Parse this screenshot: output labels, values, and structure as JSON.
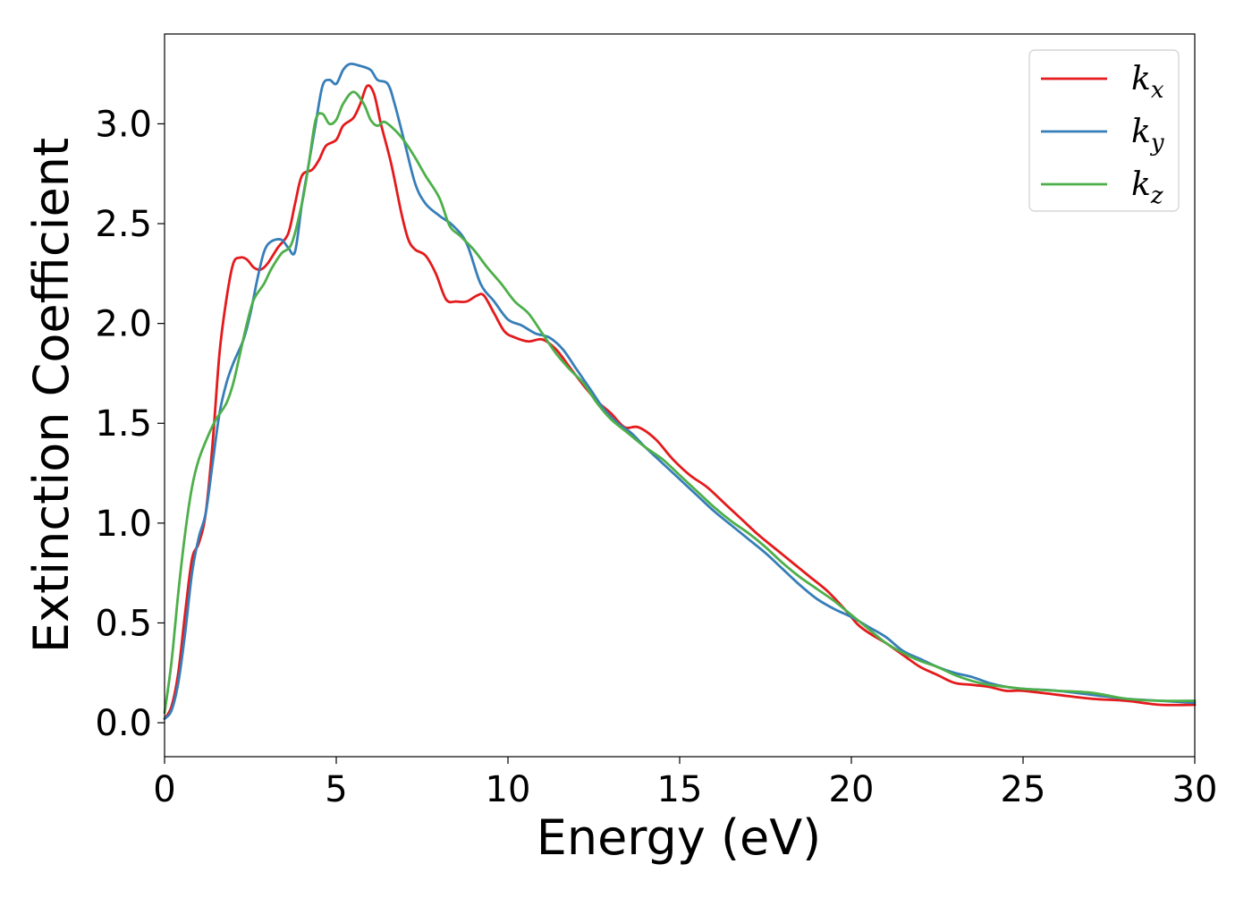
{
  "chart_data": {
    "type": "line",
    "title": "",
    "xlabel": "Energy (eV)",
    "ylabel": "Extinction Coefficient",
    "xlim": [
      0,
      30
    ],
    "ylim": [
      -0.17,
      3.45
    ],
    "grid": false,
    "legend_position": "top-right",
    "x_ticks": [
      0,
      5,
      10,
      15,
      20,
      25,
      30
    ],
    "x_tick_labels": [
      "0",
      "5",
      "10",
      "15",
      "20",
      "25",
      "30"
    ],
    "y_ticks": [
      0.0,
      0.5,
      1.0,
      1.5,
      2.0,
      2.5,
      3.0
    ],
    "y_tick_labels": [
      "0.0",
      "0.5",
      "1.0",
      "1.5",
      "2.0",
      "2.5",
      "3.0"
    ],
    "series": [
      {
        "name": "k_x",
        "legend_base": "k",
        "legend_sub": "x",
        "color": "#e41a1c",
        "points": [
          [
            0,
            0.02
          ],
          [
            0.2,
            0.08
          ],
          [
            0.4,
            0.25
          ],
          [
            0.6,
            0.55
          ],
          [
            0.8,
            0.82
          ],
          [
            1.0,
            0.9
          ],
          [
            1.2,
            1.05
          ],
          [
            1.4,
            1.4
          ],
          [
            1.6,
            1.85
          ],
          [
            1.8,
            2.12
          ],
          [
            2.0,
            2.3
          ],
          [
            2.2,
            2.33
          ],
          [
            2.4,
            2.32
          ],
          [
            2.6,
            2.28
          ],
          [
            2.8,
            2.27
          ],
          [
            3.0,
            2.3
          ],
          [
            3.3,
            2.38
          ],
          [
            3.6,
            2.45
          ],
          [
            3.8,
            2.6
          ],
          [
            4.0,
            2.74
          ],
          [
            4.3,
            2.77
          ],
          [
            4.5,
            2.82
          ],
          [
            4.7,
            2.89
          ],
          [
            5.0,
            2.92
          ],
          [
            5.2,
            2.99
          ],
          [
            5.5,
            3.03
          ],
          [
            5.7,
            3.1
          ],
          [
            5.9,
            3.19
          ],
          [
            6.1,
            3.15
          ],
          [
            6.3,
            3.0
          ],
          [
            6.6,
            2.8
          ],
          [
            6.9,
            2.55
          ],
          [
            7.1,
            2.42
          ],
          [
            7.3,
            2.37
          ],
          [
            7.6,
            2.34
          ],
          [
            7.9,
            2.25
          ],
          [
            8.2,
            2.12
          ],
          [
            8.5,
            2.11
          ],
          [
            8.8,
            2.11
          ],
          [
            9.1,
            2.14
          ],
          [
            9.3,
            2.14
          ],
          [
            9.6,
            2.05
          ],
          [
            9.9,
            1.96
          ],
          [
            10.2,
            1.93
          ],
          [
            10.6,
            1.91
          ],
          [
            11.0,
            1.92
          ],
          [
            11.4,
            1.87
          ],
          [
            11.8,
            1.78
          ],
          [
            12.2,
            1.69
          ],
          [
            12.6,
            1.61
          ],
          [
            13.0,
            1.55
          ],
          [
            13.4,
            1.48
          ],
          [
            13.8,
            1.48
          ],
          [
            14.3,
            1.42
          ],
          [
            14.8,
            1.32
          ],
          [
            15.3,
            1.24
          ],
          [
            15.8,
            1.18
          ],
          [
            16.3,
            1.1
          ],
          [
            16.8,
            1.02
          ],
          [
            17.3,
            0.94
          ],
          [
            17.8,
            0.87
          ],
          [
            18.3,
            0.8
          ],
          [
            18.8,
            0.73
          ],
          [
            19.3,
            0.66
          ],
          [
            19.8,
            0.57
          ],
          [
            20.2,
            0.49
          ],
          [
            20.6,
            0.44
          ],
          [
            21.0,
            0.4
          ],
          [
            21.5,
            0.34
          ],
          [
            22.0,
            0.28
          ],
          [
            22.5,
            0.24
          ],
          [
            23.0,
            0.2
          ],
          [
            23.5,
            0.19
          ],
          [
            24.0,
            0.18
          ],
          [
            24.5,
            0.16
          ],
          [
            25.0,
            0.16
          ],
          [
            26.0,
            0.14
          ],
          [
            27.0,
            0.12
          ],
          [
            28.0,
            0.11
          ],
          [
            29.0,
            0.09
          ],
          [
            30.0,
            0.09
          ]
        ]
      },
      {
        "name": "k_y",
        "legend_base": "k",
        "legend_sub": "y",
        "color": "#377eb8",
        "points": [
          [
            0,
            0.02
          ],
          [
            0.2,
            0.06
          ],
          [
            0.4,
            0.2
          ],
          [
            0.6,
            0.45
          ],
          [
            0.8,
            0.75
          ],
          [
            1.0,
            0.93
          ],
          [
            1.2,
            1.05
          ],
          [
            1.4,
            1.3
          ],
          [
            1.6,
            1.55
          ],
          [
            1.8,
            1.7
          ],
          [
            2.0,
            1.8
          ],
          [
            2.3,
            1.92
          ],
          [
            2.5,
            2.05
          ],
          [
            2.7,
            2.22
          ],
          [
            2.9,
            2.36
          ],
          [
            3.1,
            2.41
          ],
          [
            3.4,
            2.42
          ],
          [
            3.6,
            2.38
          ],
          [
            3.8,
            2.36
          ],
          [
            4.0,
            2.6
          ],
          [
            4.2,
            2.8
          ],
          [
            4.4,
            3.0
          ],
          [
            4.6,
            3.19
          ],
          [
            4.8,
            3.22
          ],
          [
            5.0,
            3.2
          ],
          [
            5.2,
            3.27
          ],
          [
            5.4,
            3.3
          ],
          [
            5.7,
            3.29
          ],
          [
            6.0,
            3.27
          ],
          [
            6.2,
            3.22
          ],
          [
            6.5,
            3.2
          ],
          [
            6.7,
            3.1
          ],
          [
            7.0,
            2.9
          ],
          [
            7.3,
            2.7
          ],
          [
            7.6,
            2.6
          ],
          [
            8.0,
            2.54
          ],
          [
            8.4,
            2.49
          ],
          [
            8.8,
            2.4
          ],
          [
            9.2,
            2.2
          ],
          [
            9.6,
            2.11
          ],
          [
            10.0,
            2.02
          ],
          [
            10.4,
            1.99
          ],
          [
            10.8,
            1.95
          ],
          [
            11.2,
            1.93
          ],
          [
            11.6,
            1.87
          ],
          [
            12.0,
            1.77
          ],
          [
            12.4,
            1.67
          ],
          [
            12.8,
            1.57
          ],
          [
            13.2,
            1.5
          ],
          [
            13.6,
            1.45
          ],
          [
            14.0,
            1.38
          ],
          [
            14.5,
            1.3
          ],
          [
            15.0,
            1.22
          ],
          [
            15.5,
            1.14
          ],
          [
            16.0,
            1.06
          ],
          [
            16.5,
            0.99
          ],
          [
            17.0,
            0.92
          ],
          [
            17.5,
            0.85
          ],
          [
            18.0,
            0.77
          ],
          [
            18.5,
            0.69
          ],
          [
            19.0,
            0.62
          ],
          [
            19.5,
            0.57
          ],
          [
            20.0,
            0.53
          ],
          [
            20.5,
            0.48
          ],
          [
            21.0,
            0.43
          ],
          [
            21.5,
            0.36
          ],
          [
            22.0,
            0.32
          ],
          [
            22.5,
            0.28
          ],
          [
            23.0,
            0.25
          ],
          [
            23.5,
            0.23
          ],
          [
            24.0,
            0.2
          ],
          [
            24.5,
            0.18
          ],
          [
            25.0,
            0.17
          ],
          [
            26.0,
            0.16
          ],
          [
            27.0,
            0.14
          ],
          [
            28.0,
            0.12
          ],
          [
            29.0,
            0.11
          ],
          [
            30.0,
            0.1
          ]
        ]
      },
      {
        "name": "k_z",
        "legend_base": "k",
        "legend_sub": "z",
        "color": "#4daf4a",
        "points": [
          [
            0,
            0.05
          ],
          [
            0.2,
            0.3
          ],
          [
            0.4,
            0.65
          ],
          [
            0.6,
            0.95
          ],
          [
            0.8,
            1.18
          ],
          [
            1.0,
            1.32
          ],
          [
            1.3,
            1.45
          ],
          [
            1.5,
            1.52
          ],
          [
            1.8,
            1.6
          ],
          [
            2.0,
            1.7
          ],
          [
            2.2,
            1.85
          ],
          [
            2.4,
            2.0
          ],
          [
            2.6,
            2.12
          ],
          [
            2.9,
            2.2
          ],
          [
            3.1,
            2.27
          ],
          [
            3.4,
            2.35
          ],
          [
            3.7,
            2.4
          ],
          [
            4.0,
            2.6
          ],
          [
            4.2,
            2.8
          ],
          [
            4.4,
            3.02
          ],
          [
            4.6,
            3.05
          ],
          [
            4.8,
            3.0
          ],
          [
            5.0,
            3.02
          ],
          [
            5.2,
            3.1
          ],
          [
            5.5,
            3.16
          ],
          [
            5.8,
            3.1
          ],
          [
            6.0,
            3.02
          ],
          [
            6.2,
            2.99
          ],
          [
            6.4,
            3.01
          ],
          [
            6.7,
            2.97
          ],
          [
            7.0,
            2.91
          ],
          [
            7.3,
            2.83
          ],
          [
            7.6,
            2.74
          ],
          [
            8.0,
            2.63
          ],
          [
            8.3,
            2.49
          ],
          [
            8.6,
            2.44
          ],
          [
            9.0,
            2.37
          ],
          [
            9.4,
            2.28
          ],
          [
            9.8,
            2.2
          ],
          [
            10.2,
            2.11
          ],
          [
            10.6,
            2.05
          ],
          [
            11.0,
            1.95
          ],
          [
            11.4,
            1.85
          ],
          [
            11.8,
            1.77
          ],
          [
            12.2,
            1.7
          ],
          [
            12.6,
            1.6
          ],
          [
            13.0,
            1.52
          ],
          [
            13.5,
            1.45
          ],
          [
            14.0,
            1.38
          ],
          [
            14.5,
            1.32
          ],
          [
            15.0,
            1.24
          ],
          [
            15.5,
            1.16
          ],
          [
            16.0,
            1.08
          ],
          [
            16.5,
            1.01
          ],
          [
            17.0,
            0.95
          ],
          [
            17.5,
            0.88
          ],
          [
            18.0,
            0.8
          ],
          [
            18.5,
            0.73
          ],
          [
            19.0,
            0.67
          ],
          [
            19.5,
            0.61
          ],
          [
            20.0,
            0.54
          ],
          [
            20.5,
            0.47
          ],
          [
            21.0,
            0.4
          ],
          [
            21.5,
            0.35
          ],
          [
            22.0,
            0.31
          ],
          [
            22.5,
            0.28
          ],
          [
            23.0,
            0.24
          ],
          [
            23.5,
            0.21
          ],
          [
            24.0,
            0.19
          ],
          [
            24.5,
            0.18
          ],
          [
            25.0,
            0.17
          ],
          [
            26.0,
            0.16
          ],
          [
            27.0,
            0.15
          ],
          [
            28.0,
            0.12
          ],
          [
            29.0,
            0.11
          ],
          [
            30.0,
            0.11
          ]
        ]
      }
    ]
  }
}
